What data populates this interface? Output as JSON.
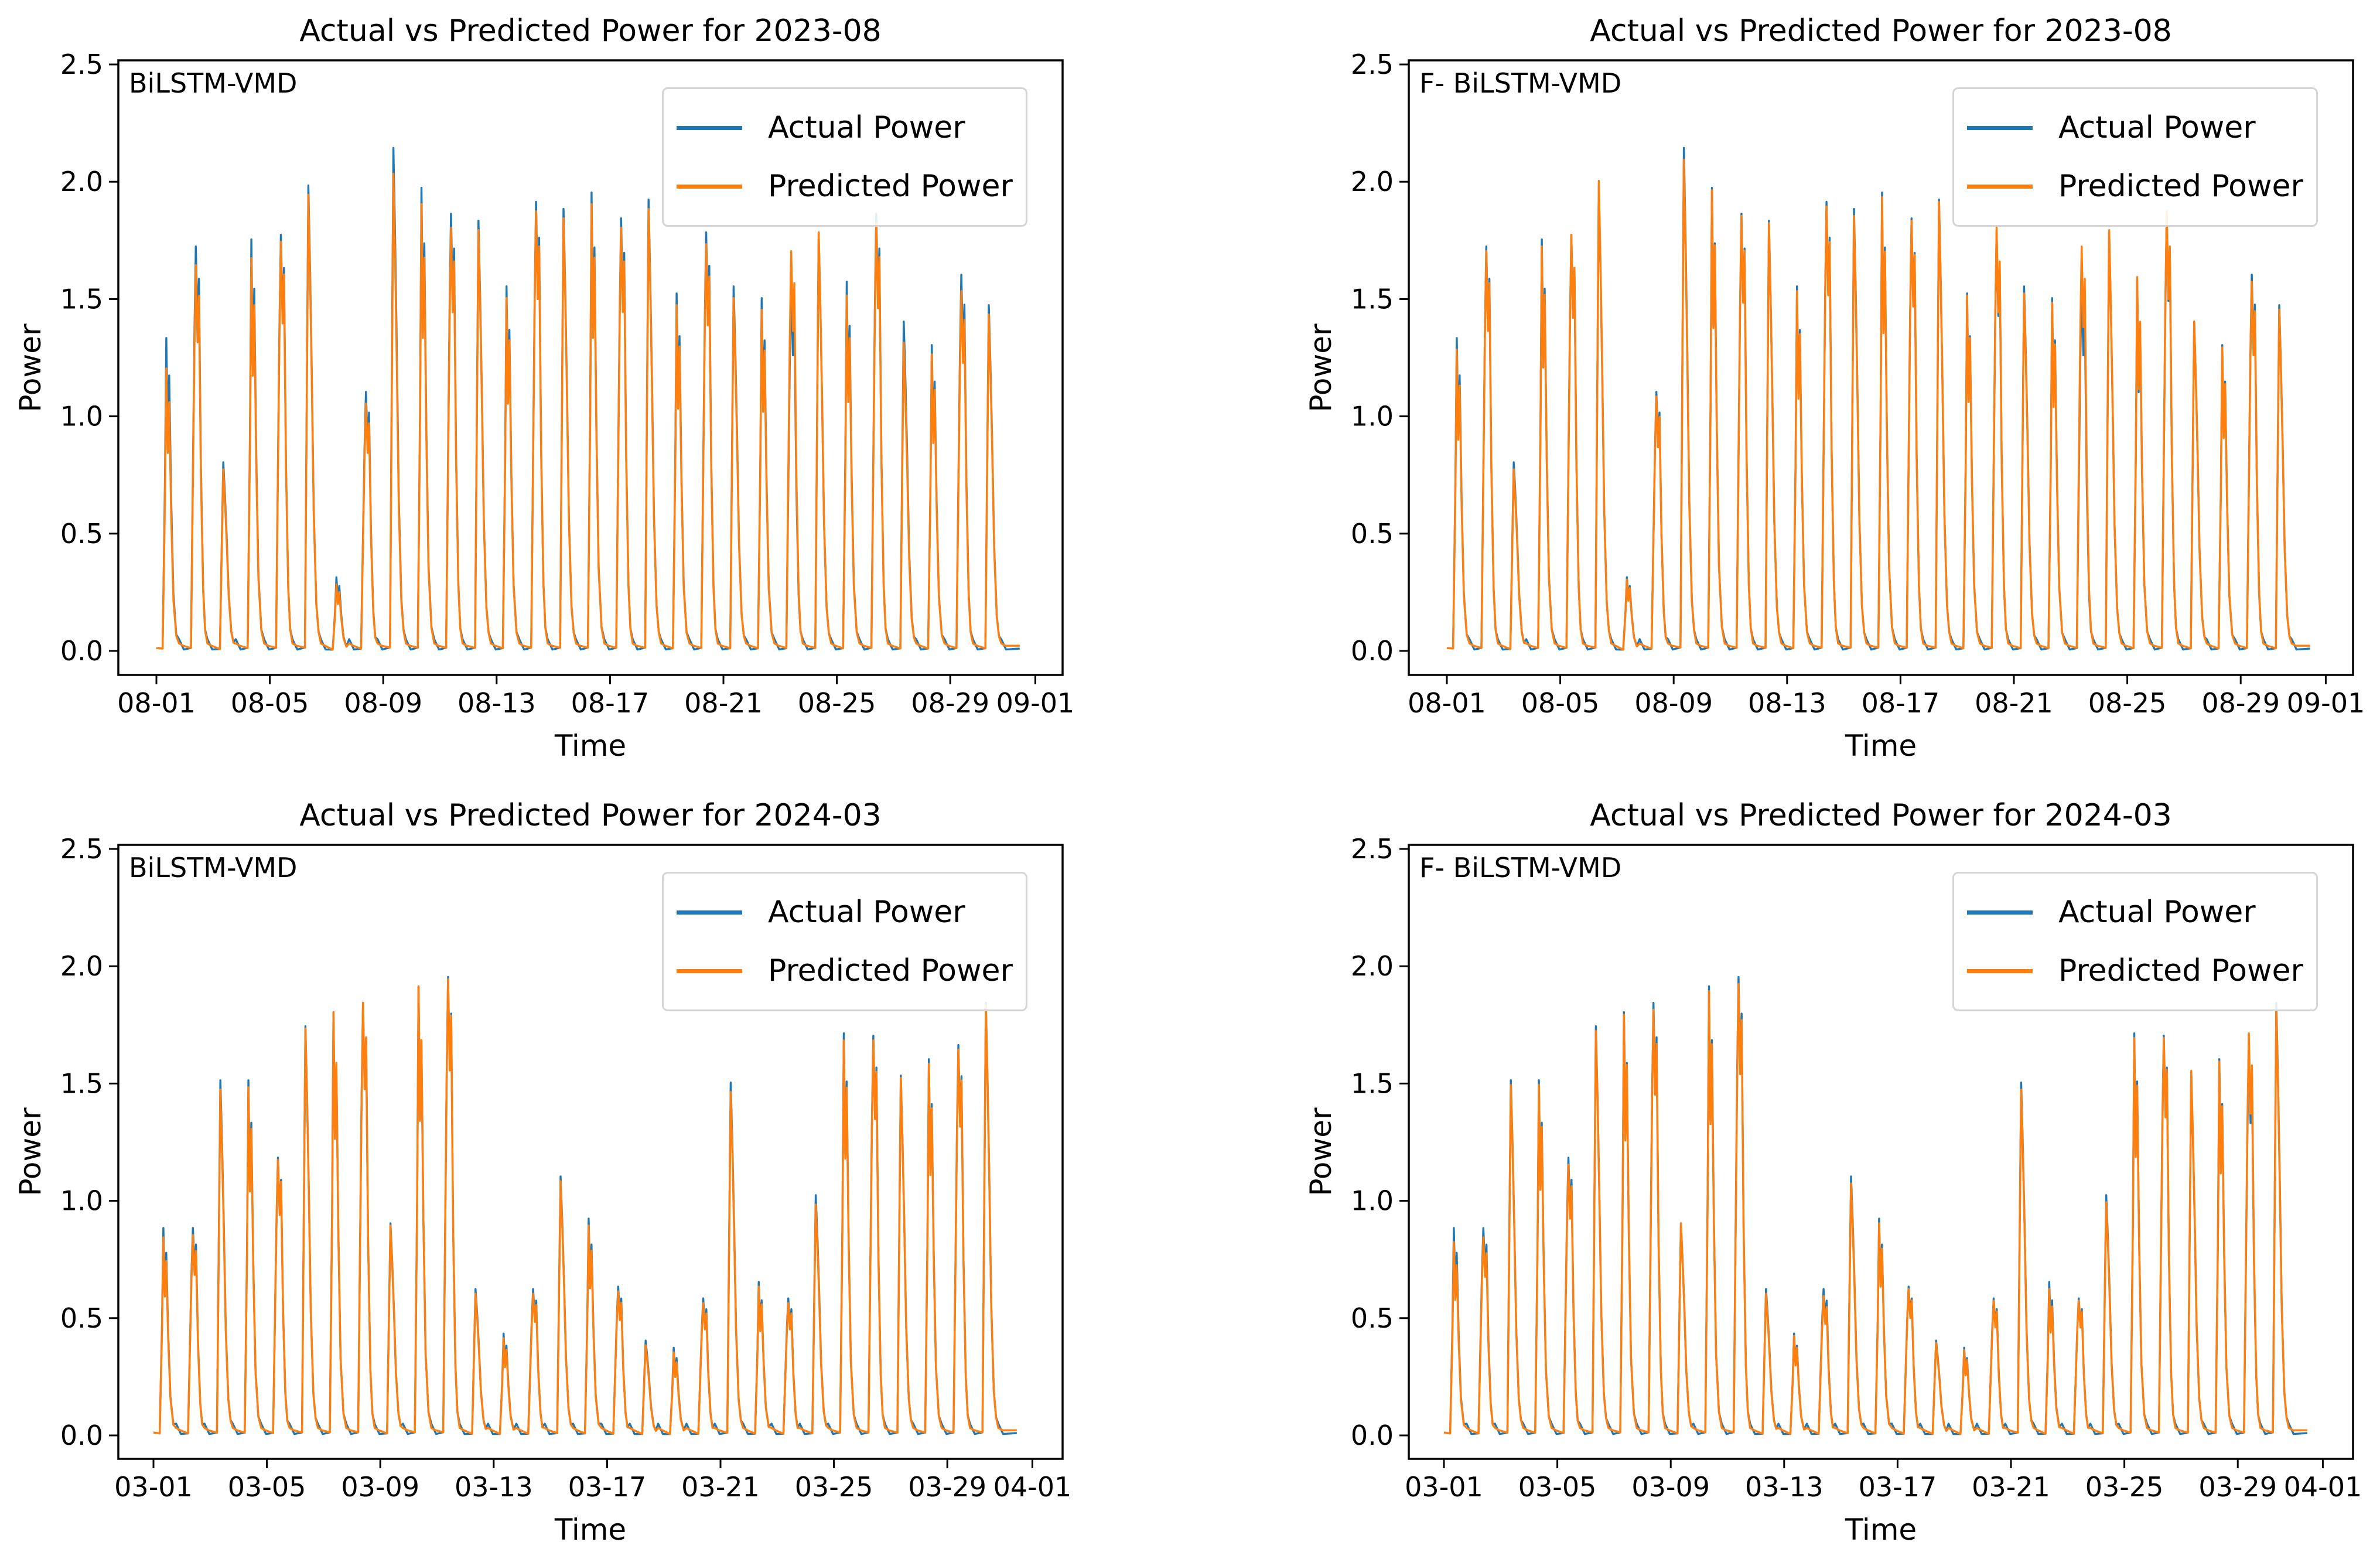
{
  "figure": {
    "background": "#ffffff",
    "text_color": "#000000",
    "actual_color": "#1f77b4",
    "predicted_color": "#ff7f0e"
  },
  "chart_data": [
    {
      "panel": "top-left",
      "type": "line",
      "title": "Actual vs Predicted Power for 2023-08",
      "model_label": "BiLSTM-VMD",
      "xlabel": "Time",
      "ylabel": "Power",
      "x_start_date": "2023-08-01",
      "x_end_date": "2023-09-01",
      "x_tick_labels": [
        "08-01",
        "08-05",
        "08-09",
        "08-13",
        "08-17",
        "08-21",
        "08-25",
        "08-29",
        "09-01"
      ],
      "x_tick_day_offsets": [
        0,
        4,
        8,
        12,
        16,
        20,
        24,
        28,
        31
      ],
      "y_tick_labels": [
        "0.0",
        "0.5",
        "1.0",
        "1.5",
        "2.0",
        "2.5"
      ],
      "ylim": [
        0.0,
        2.5
      ],
      "grid": false,
      "legend_position": "upper right",
      "sampling": "sub-daily solar power profile; one peak value listed per day starting 2023-08-01",
      "series": [
        {
          "name": "Actual Power",
          "color": "#1f77b4",
          "daily_peaks": [
            1.33,
            1.72,
            0.8,
            1.75,
            1.77,
            1.98,
            0.31,
            1.1,
            2.14,
            1.97,
            1.86,
            1.83,
            1.55,
            1.91,
            1.88,
            1.95,
            1.84,
            1.92,
            1.52,
            1.78,
            1.55,
            1.5,
            1.57,
            1.78,
            1.57,
            1.86,
            1.4,
            1.3,
            1.6,
            1.47
          ]
        },
        {
          "name": "Predicted Power",
          "color": "#ff7f0e",
          "daily_peaks": [
            1.2,
            1.64,
            0.77,
            1.67,
            1.74,
            1.94,
            0.28,
            1.05,
            2.03,
            1.9,
            1.8,
            1.79,
            1.5,
            1.87,
            1.84,
            1.9,
            1.8,
            1.88,
            1.47,
            1.73,
            1.5,
            1.45,
            1.7,
            1.78,
            1.51,
            1.82,
            1.31,
            1.26,
            1.53,
            1.43
          ]
        }
      ]
    },
    {
      "panel": "top-right",
      "type": "line",
      "title": "Actual vs Predicted Power for 2023-08",
      "model_label": "F- BiLSTM-VMD",
      "xlabel": "Time",
      "ylabel": "Power",
      "x_start_date": "2023-08-01",
      "x_end_date": "2023-09-01",
      "x_tick_labels": [
        "08-01",
        "08-05",
        "08-09",
        "08-13",
        "08-17",
        "08-21",
        "08-25",
        "08-29",
        "09-01"
      ],
      "x_tick_day_offsets": [
        0,
        4,
        8,
        12,
        16,
        20,
        24,
        28,
        31
      ],
      "y_tick_labels": [
        "0.0",
        "0.5",
        "1.0",
        "1.5",
        "2.0",
        "2.5"
      ],
      "ylim": [
        0.0,
        2.5
      ],
      "grid": false,
      "legend_position": "upper right",
      "sampling": "sub-daily solar power profile; one peak value listed per day starting 2023-08-01",
      "series": [
        {
          "name": "Actual Power",
          "color": "#1f77b4",
          "daily_peaks": [
            1.33,
            1.72,
            0.8,
            1.75,
            1.77,
            1.98,
            0.31,
            1.1,
            2.14,
            1.97,
            1.86,
            1.83,
            1.55,
            1.91,
            1.88,
            1.95,
            1.84,
            1.92,
            1.52,
            1.78,
            1.55,
            1.5,
            1.57,
            1.78,
            1.57,
            1.86,
            1.4,
            1.3,
            1.6,
            1.47
          ]
        },
        {
          "name": "Predicted Power",
          "color": "#ff7f0e",
          "daily_peaks": [
            1.28,
            1.7,
            0.77,
            1.72,
            1.77,
            2.0,
            0.3,
            1.08,
            2.09,
            1.96,
            1.85,
            1.82,
            1.53,
            1.89,
            1.85,
            1.93,
            1.83,
            1.91,
            1.51,
            1.8,
            1.52,
            1.48,
            1.72,
            1.79,
            1.59,
            1.87,
            1.4,
            1.29,
            1.57,
            1.45
          ]
        }
      ]
    },
    {
      "panel": "bottom-left",
      "type": "line",
      "title": "Actual vs Predicted Power for 2024-03",
      "model_label": "BiLSTM-VMD",
      "xlabel": "Time",
      "ylabel": "Power",
      "x_start_date": "2024-03-01",
      "x_end_date": "2024-04-01",
      "x_tick_labels": [
        "03-01",
        "03-05",
        "03-09",
        "03-13",
        "03-17",
        "03-21",
        "03-25",
        "03-29",
        "04-01"
      ],
      "x_tick_day_offsets": [
        0,
        4,
        8,
        12,
        16,
        20,
        24,
        28,
        31
      ],
      "y_tick_labels": [
        "0.0",
        "0.5",
        "1.0",
        "1.5",
        "2.0",
        "2.5"
      ],
      "ylim": [
        0.0,
        2.5
      ],
      "grid": false,
      "legend_position": "upper right",
      "sampling": "sub-daily solar power profile; one peak value listed per day starting 2024-03-01",
      "series": [
        {
          "name": "Actual Power",
          "color": "#1f77b4",
          "daily_peaks": [
            0.88,
            0.88,
            1.51,
            1.51,
            1.18,
            1.74,
            1.8,
            1.84,
            0.9,
            1.91,
            1.95,
            0.62,
            0.43,
            0.62,
            1.1,
            0.92,
            0.63,
            0.4,
            0.37,
            0.58,
            1.5,
            0.65,
            0.58,
            1.02,
            1.71,
            1.7,
            1.53,
            1.6,
            1.66,
            1.84
          ]
        },
        {
          "name": "Predicted Power",
          "color": "#ff7f0e",
          "daily_peaks": [
            0.84,
            0.85,
            1.47,
            1.48,
            1.17,
            1.73,
            1.8,
            1.84,
            0.89,
            1.91,
            1.94,
            0.6,
            0.41,
            0.6,
            1.08,
            0.89,
            0.61,
            0.38,
            0.35,
            0.56,
            1.46,
            0.63,
            0.56,
            0.98,
            1.68,
            1.68,
            1.52,
            1.58,
            1.64,
            1.83
          ]
        }
      ]
    },
    {
      "panel": "bottom-right",
      "type": "line",
      "title": "Actual vs Predicted Power for 2024-03",
      "model_label": "F- BiLSTM-VMD",
      "xlabel": "Time",
      "ylabel": "Power",
      "x_start_date": "2024-03-01",
      "x_end_date": "2024-04-01",
      "x_tick_labels": [
        "03-01",
        "03-05",
        "03-09",
        "03-13",
        "03-17",
        "03-21",
        "03-25",
        "03-29",
        "04-01"
      ],
      "x_tick_day_offsets": [
        0,
        4,
        8,
        12,
        16,
        20,
        24,
        28,
        31
      ],
      "y_tick_labels": [
        "0.0",
        "0.5",
        "1.0",
        "1.5",
        "2.0",
        "2.5"
      ],
      "ylim": [
        0.0,
        2.5
      ],
      "grid": false,
      "legend_position": "upper right",
      "sampling": "sub-daily solar power profile; one peak value listed per day starting 2024-03-01",
      "series": [
        {
          "name": "Actual Power",
          "color": "#1f77b4",
          "daily_peaks": [
            0.88,
            0.88,
            1.51,
            1.51,
            1.18,
            1.74,
            1.8,
            1.84,
            0.9,
            1.91,
            1.95,
            0.62,
            0.43,
            0.62,
            1.1,
            0.92,
            0.63,
            0.4,
            0.37,
            0.58,
            1.5,
            0.65,
            0.58,
            1.02,
            1.71,
            1.7,
            1.53,
            1.6,
            1.66,
            1.84
          ]
        },
        {
          "name": "Predicted Power",
          "color": "#ff7f0e",
          "daily_peaks": [
            0.82,
            0.84,
            1.49,
            1.49,
            1.15,
            1.72,
            1.79,
            1.81,
            0.9,
            1.89,
            1.92,
            0.6,
            0.42,
            0.59,
            1.07,
            0.9,
            0.62,
            0.39,
            0.36,
            0.57,
            1.47,
            0.62,
            0.57,
            0.99,
            1.69,
            1.69,
            1.55,
            1.59,
            1.71,
            1.81
          ]
        }
      ]
    }
  ]
}
